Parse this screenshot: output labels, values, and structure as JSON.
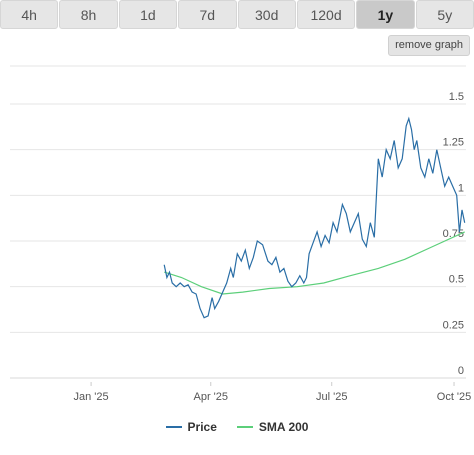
{
  "tabs": [
    {
      "label": "4h"
    },
    {
      "label": "8h"
    },
    {
      "label": "1d"
    },
    {
      "label": "7d"
    },
    {
      "label": "30d"
    },
    {
      "label": "120d"
    },
    {
      "label": "1y",
      "active": true
    },
    {
      "label": "5y"
    }
  ],
  "remove_graph_label": "remove graph",
  "colors": {
    "price": "#2a6ea6",
    "sma": "#5ccf7a",
    "grid": "#e6e6e6"
  },
  "chart_data": {
    "type": "line",
    "x_range": [
      "2024-11-01",
      "2025-10-10"
    ],
    "ylim": [
      0,
      1.5
    ],
    "y_ticks": [
      {
        "value": 1.5,
        "label": "1.5"
      },
      {
        "value": 1.25,
        "label": "1.25"
      },
      {
        "value": 1,
        "label": "1"
      },
      {
        "value": 0.75,
        "label": "0.75"
      },
      {
        "value": 0.5,
        "label": "0.5"
      },
      {
        "value": 0.25,
        "label": "0.25"
      },
      {
        "value": 0,
        "label": "0"
      }
    ],
    "x_ticks": [
      {
        "date": "2025-01-01",
        "label": "Jan '25"
      },
      {
        "date": "2025-04-01",
        "label": "Apr '25"
      },
      {
        "date": "2025-07-01",
        "label": "Jul '25"
      },
      {
        "date": "2025-10-01",
        "label": "Oct '25"
      }
    ],
    "series": [
      {
        "name": "Price",
        "points": [
          [
            "2025-02-25",
            0.62
          ],
          [
            "2025-02-27",
            0.55
          ],
          [
            "2025-03-01",
            0.58
          ],
          [
            "2025-03-03",
            0.52
          ],
          [
            "2025-03-06",
            0.5
          ],
          [
            "2025-03-09",
            0.52
          ],
          [
            "2025-03-12",
            0.5
          ],
          [
            "2025-03-15",
            0.51
          ],
          [
            "2025-03-18",
            0.47
          ],
          [
            "2025-03-21",
            0.46
          ],
          [
            "2025-03-24",
            0.38
          ],
          [
            "2025-03-27",
            0.33
          ],
          [
            "2025-03-30",
            0.34
          ],
          [
            "2025-04-02",
            0.44
          ],
          [
            "2025-04-04",
            0.38
          ],
          [
            "2025-04-07",
            0.42
          ],
          [
            "2025-04-10",
            0.47
          ],
          [
            "2025-04-13",
            0.52
          ],
          [
            "2025-04-16",
            0.6
          ],
          [
            "2025-04-18",
            0.55
          ],
          [
            "2025-04-21",
            0.68
          ],
          [
            "2025-04-24",
            0.64
          ],
          [
            "2025-04-27",
            0.7
          ],
          [
            "2025-04-30",
            0.6
          ],
          [
            "2025-05-03",
            0.66
          ],
          [
            "2025-05-06",
            0.75
          ],
          [
            "2025-05-10",
            0.73
          ],
          [
            "2025-05-14",
            0.64
          ],
          [
            "2025-05-17",
            0.62
          ],
          [
            "2025-05-20",
            0.66
          ],
          [
            "2025-05-23",
            0.58
          ],
          [
            "2025-05-26",
            0.6
          ],
          [
            "2025-05-29",
            0.53
          ],
          [
            "2025-06-01",
            0.5
          ],
          [
            "2025-06-04",
            0.52
          ],
          [
            "2025-06-07",
            0.56
          ],
          [
            "2025-06-10",
            0.52
          ],
          [
            "2025-06-12",
            0.55
          ],
          [
            "2025-06-14",
            0.68
          ],
          [
            "2025-06-17",
            0.74
          ],
          [
            "2025-06-20",
            0.8
          ],
          [
            "2025-06-23",
            0.72
          ],
          [
            "2025-06-26",
            0.78
          ],
          [
            "2025-06-29",
            0.74
          ],
          [
            "2025-07-02",
            0.85
          ],
          [
            "2025-07-05",
            0.8
          ],
          [
            "2025-07-09",
            0.95
          ],
          [
            "2025-07-12",
            0.9
          ],
          [
            "2025-07-15",
            0.8
          ],
          [
            "2025-07-18",
            0.85
          ],
          [
            "2025-07-21",
            0.9
          ],
          [
            "2025-07-24",
            0.76
          ],
          [
            "2025-07-27",
            0.72
          ],
          [
            "2025-07-30",
            0.85
          ],
          [
            "2025-08-02",
            0.77
          ],
          [
            "2025-08-05",
            1.2
          ],
          [
            "2025-08-08",
            1.1
          ],
          [
            "2025-08-11",
            1.25
          ],
          [
            "2025-08-14",
            1.2
          ],
          [
            "2025-08-17",
            1.3
          ],
          [
            "2025-08-20",
            1.15
          ],
          [
            "2025-08-23",
            1.2
          ],
          [
            "2025-08-26",
            1.38
          ],
          [
            "2025-08-28",
            1.42
          ],
          [
            "2025-08-30",
            1.36
          ],
          [
            "2025-09-01",
            1.25
          ],
          [
            "2025-09-03",
            1.3
          ],
          [
            "2025-09-06",
            1.15
          ],
          [
            "2025-09-09",
            1.1
          ],
          [
            "2025-09-12",
            1.2
          ],
          [
            "2025-09-15",
            1.12
          ],
          [
            "2025-09-18",
            1.25
          ],
          [
            "2025-09-21",
            1.15
          ],
          [
            "2025-09-24",
            1.05
          ],
          [
            "2025-09-27",
            1.1
          ],
          [
            "2025-09-30",
            1.05
          ],
          [
            "2025-10-03",
            1.0
          ],
          [
            "2025-10-05",
            0.8
          ],
          [
            "2025-10-07",
            0.92
          ],
          [
            "2025-10-09",
            0.85
          ]
        ]
      },
      {
        "name": "SMA 200",
        "points": [
          [
            "2025-02-25",
            0.58
          ],
          [
            "2025-03-10",
            0.55
          ],
          [
            "2025-03-25",
            0.5
          ],
          [
            "2025-04-10",
            0.46
          ],
          [
            "2025-04-25",
            0.47
          ],
          [
            "2025-05-15",
            0.49
          ],
          [
            "2025-06-05",
            0.5
          ],
          [
            "2025-06-25",
            0.52
          ],
          [
            "2025-07-15",
            0.56
          ],
          [
            "2025-08-05",
            0.6
          ],
          [
            "2025-08-25",
            0.65
          ],
          [
            "2025-09-15",
            0.72
          ],
          [
            "2025-10-09",
            0.8
          ]
        ]
      }
    ]
  }
}
